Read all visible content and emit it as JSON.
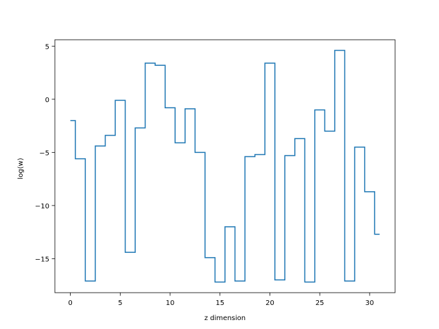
{
  "chart_data": {
    "type": "line",
    "drawstyle": "steps-mid",
    "title": "",
    "xlabel": "z dimension",
    "ylabel": "log(w)",
    "xlim": [
      -1.55,
      32.55
    ],
    "ylim": [
      -18.2,
      5.6
    ],
    "xticks": [
      0,
      5,
      10,
      15,
      20,
      25,
      30
    ],
    "yticks": [
      5,
      0,
      -5,
      -10,
      -15
    ],
    "ytick_labels": [
      "5",
      "0",
      "−5",
      "−10",
      "−15"
    ],
    "grid": false,
    "line_color": "#1f77b4",
    "series": [
      {
        "x": [
          0,
          1,
          2,
          3,
          4,
          5,
          6,
          7,
          8,
          9,
          10,
          11,
          12,
          13,
          14,
          15,
          16,
          17,
          18,
          19,
          20,
          21,
          22,
          23,
          24,
          25,
          26,
          27,
          28,
          29,
          30,
          31
        ],
        "values": [
          -2.0,
          -5.6,
          -17.1,
          -4.4,
          -3.4,
          -0.1,
          -14.4,
          -2.7,
          3.4,
          3.2,
          -0.8,
          -4.1,
          -0.9,
          -5.0,
          -14.9,
          -17.2,
          -12.0,
          -17.1,
          -5.4,
          -5.2,
          3.4,
          -17.0,
          -5.3,
          -3.7,
          -17.2,
          -1.0,
          -3.0,
          4.6,
          -17.1,
          -4.5,
          -8.7,
          -12.7
        ]
      }
    ]
  }
}
